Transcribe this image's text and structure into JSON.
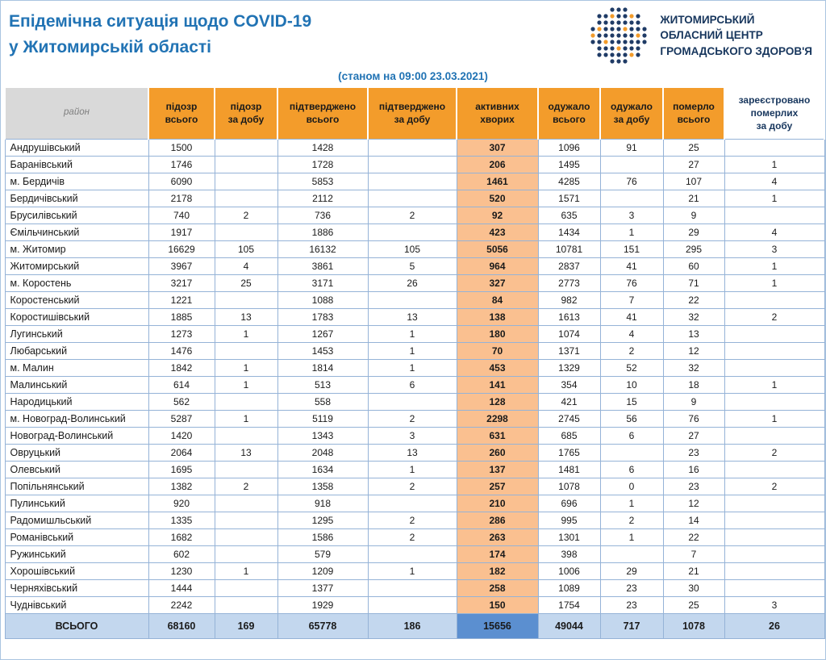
{
  "colors": {
    "title_blue": "#2173B4",
    "org_navy": "#17365D",
    "logo_navy": "#1F3B66",
    "header_orange": "#F39C2B",
    "active_peach": "#FAC090",
    "total_blue": "#C3D7EE",
    "total_active_blue": "#5B8FD0",
    "grid_blue": "#95B3D7"
  },
  "header": {
    "title_line1": "Епідемічна ситуація щодо COVID-19",
    "title_line2": "у Житомирській області",
    "as_of": "(станом на 09:00 23.03.2021)",
    "org": {
      "line1": "ЖИТОМИРСЬКИЙ",
      "line2": "ОБЛАСНИЙ ЦЕНТР",
      "line3": "ГРОМАДСЬКОГО ЗДОРОВ'Я"
    }
  },
  "table": {
    "columns": [
      [
        "район"
      ],
      [
        "підозр",
        "всього"
      ],
      [
        "підозр",
        "за добу"
      ],
      [
        "підтверджено",
        "всього"
      ],
      [
        "підтверджено",
        "за добу"
      ],
      [
        "активних",
        "хворих"
      ],
      [
        "одужало",
        "всього"
      ],
      [
        "одужало",
        "за добу"
      ],
      [
        "померло",
        "всього"
      ],
      [
        "зареєстровано",
        "померлих",
        "за добу"
      ]
    ],
    "rows": [
      {
        "district": "Андрушівський",
        "values": [
          "1500",
          "",
          "1428",
          "",
          "307",
          "1096",
          "91",
          "25",
          ""
        ]
      },
      {
        "district": "Баранівський",
        "values": [
          "1746",
          "",
          "1728",
          "",
          "206",
          "1495",
          "",
          "27",
          "1"
        ]
      },
      {
        "district": "м. Бердичів",
        "values": [
          "6090",
          "",
          "5853",
          "",
          "1461",
          "4285",
          "76",
          "107",
          "4"
        ]
      },
      {
        "district": "Бердичівський",
        "values": [
          "2178",
          "",
          "2112",
          "",
          "520",
          "1571",
          "",
          "21",
          "1"
        ]
      },
      {
        "district": "Брусилівський",
        "values": [
          "740",
          "2",
          "736",
          "2",
          "92",
          "635",
          "3",
          "9",
          ""
        ]
      },
      {
        "district": "Ємільчинський",
        "values": [
          "1917",
          "",
          "1886",
          "",
          "423",
          "1434",
          "1",
          "29",
          "4"
        ]
      },
      {
        "district": "м. Житомир",
        "values": [
          "16629",
          "105",
          "16132",
          "105",
          "5056",
          "10781",
          "151",
          "295",
          "3"
        ]
      },
      {
        "district": "Житомирський",
        "values": [
          "3967",
          "4",
          "3861",
          "5",
          "964",
          "2837",
          "41",
          "60",
          "1"
        ]
      },
      {
        "district": "м. Коростень",
        "values": [
          "3217",
          "25",
          "3171",
          "26",
          "327",
          "2773",
          "76",
          "71",
          "1"
        ]
      },
      {
        "district": "Коростенський",
        "values": [
          "1221",
          "",
          "1088",
          "",
          "84",
          "982",
          "7",
          "22",
          ""
        ]
      },
      {
        "district": "Коростишівський",
        "values": [
          "1885",
          "13",
          "1783",
          "13",
          "138",
          "1613",
          "41",
          "32",
          "2"
        ]
      },
      {
        "district": "Лугинський",
        "values": [
          "1273",
          "1",
          "1267",
          "1",
          "180",
          "1074",
          "4",
          "13",
          ""
        ]
      },
      {
        "district": "Любарський",
        "values": [
          "1476",
          "",
          "1453",
          "1",
          "70",
          "1371",
          "2",
          "12",
          ""
        ]
      },
      {
        "district": "м. Малин",
        "values": [
          "1842",
          "1",
          "1814",
          "1",
          "453",
          "1329",
          "52",
          "32",
          ""
        ]
      },
      {
        "district": "Малинський",
        "values": [
          "614",
          "1",
          "513",
          "6",
          "141",
          "354",
          "10",
          "18",
          "1"
        ]
      },
      {
        "district": "Народицький",
        "values": [
          "562",
          "",
          "558",
          "",
          "128",
          "421",
          "15",
          "9",
          ""
        ]
      },
      {
        "district": "м. Новоград-Волинський",
        "values": [
          "5287",
          "1",
          "5119",
          "2",
          "2298",
          "2745",
          "56",
          "76",
          "1"
        ]
      },
      {
        "district": "Новоград-Волинський",
        "values": [
          "1420",
          "",
          "1343",
          "3",
          "631",
          "685",
          "6",
          "27",
          ""
        ]
      },
      {
        "district": "Овруцький",
        "values": [
          "2064",
          "13",
          "2048",
          "13",
          "260",
          "1765",
          "",
          "23",
          "2"
        ]
      },
      {
        "district": "Олевський",
        "values": [
          "1695",
          "",
          "1634",
          "1",
          "137",
          "1481",
          "6",
          "16",
          ""
        ]
      },
      {
        "district": "Попільнянський",
        "values": [
          "1382",
          "2",
          "1358",
          "2",
          "257",
          "1078",
          "0",
          "23",
          "2"
        ]
      },
      {
        "district": "Пулинський",
        "values": [
          "920",
          "",
          "918",
          "",
          "210",
          "696",
          "1",
          "12",
          ""
        ]
      },
      {
        "district": "Радомишльський",
        "values": [
          "1335",
          "",
          "1295",
          "2",
          "286",
          "995",
          "2",
          "14",
          ""
        ]
      },
      {
        "district": "Романівський",
        "values": [
          "1682",
          "",
          "1586",
          "2",
          "263",
          "1301",
          "1",
          "22",
          ""
        ]
      },
      {
        "district": "Ружинський",
        "values": [
          "602",
          "",
          "579",
          "",
          "174",
          "398",
          "",
          "7",
          ""
        ]
      },
      {
        "district": "Хорошівський",
        "values": [
          "1230",
          "1",
          "1209",
          "1",
          "182",
          "1006",
          "29",
          "21",
          ""
        ]
      },
      {
        "district": "Черняхівський",
        "values": [
          "1444",
          "",
          "1377",
          "",
          "258",
          "1089",
          "23",
          "30",
          ""
        ]
      },
      {
        "district": "Чуднівський",
        "values": [
          "2242",
          "",
          "1929",
          "",
          "150",
          "1754",
          "23",
          "25",
          "3"
        ]
      }
    ],
    "total": {
      "label": "ВСЬОГО",
      "values": [
        "68160",
        "169",
        "65778",
        "186",
        "15656",
        "49044",
        "717",
        "1078",
        "26"
      ]
    }
  }
}
